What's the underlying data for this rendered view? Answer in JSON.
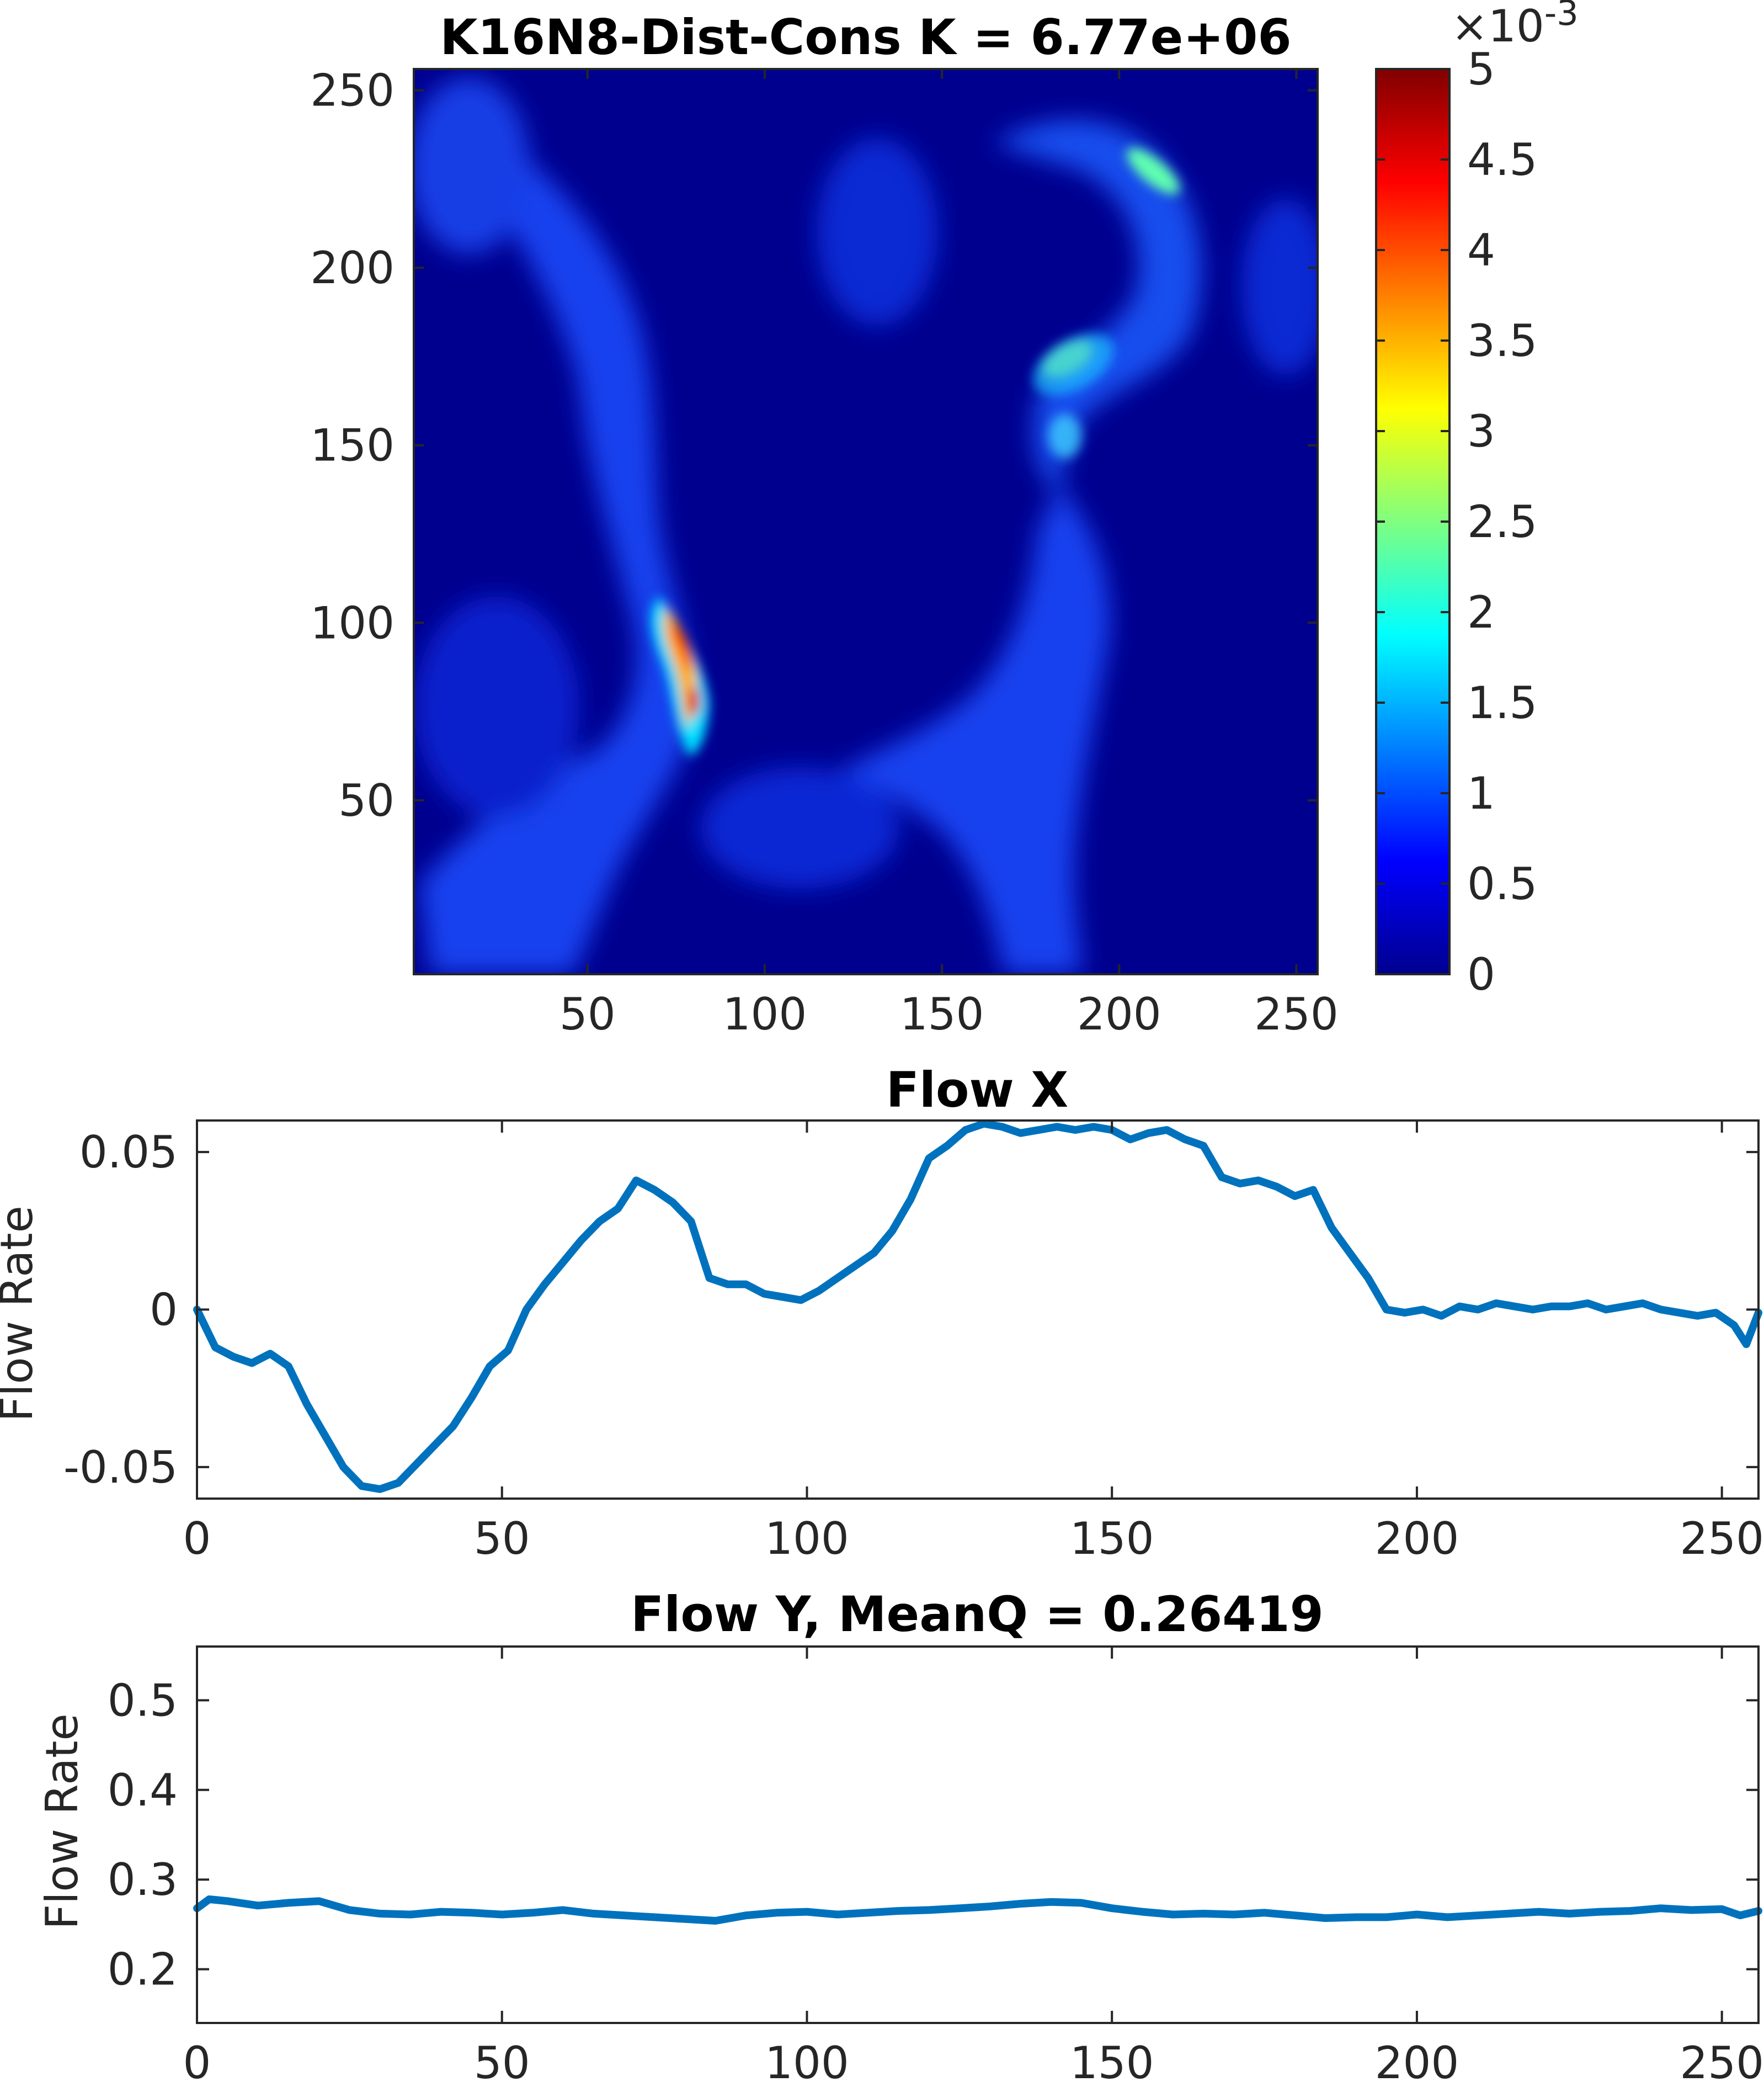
{
  "colors": {
    "series_line": "#0072bd",
    "axis": "#262626",
    "background": "#ffffff",
    "heatmap_background": "#00008f"
  },
  "chart_data": [
    {
      "type": "heatmap",
      "title": "K16N8-Dist-Cons K = 6.77e+06",
      "xlabel": "",
      "ylabel": "",
      "xlim": [
        1,
        256
      ],
      "ylim": [
        1,
        256
      ],
      "x_ticks": [
        50,
        100,
        150,
        200,
        250
      ],
      "y_ticks": [
        50,
        100,
        150,
        200,
        250
      ],
      "colormap": "jet",
      "colorbar": {
        "range": [
          0,
          5
        ],
        "ticks": [
          0,
          0.5,
          1,
          1.5,
          2,
          2.5,
          3,
          3.5,
          4,
          4.5,
          5
        ],
        "tick_labels": [
          "0",
          "0.5",
          "1",
          "1.5",
          "2",
          "2.5",
          "3",
          "3.5",
          "4",
          "4.5",
          "5"
        ],
        "multiplier_label": "×10",
        "multiplier_exponent": "-3"
      },
      "grid": false,
      "features": [
        {
          "x": 77,
          "y": 90,
          "peak": 4.6
        },
        {
          "x": 81,
          "y": 75,
          "peak": 4.2
        },
        {
          "x": 190,
          "y": 170,
          "peak": 2.6
        },
        {
          "x": 212,
          "y": 230,
          "peak": 2.2
        },
        {
          "x": 185,
          "y": 145,
          "peak": 1.4
        }
      ]
    },
    {
      "type": "line",
      "title": "Flow X",
      "xlabel": "",
      "ylabel": "Flow Rate",
      "xlim": [
        0,
        256
      ],
      "ylim": [
        -0.06,
        0.06
      ],
      "x_ticks": [
        0,
        50,
        100,
        150,
        200,
        250
      ],
      "y_ticks": [
        -0.05,
        0,
        0.05
      ],
      "y_tick_labels": [
        "-0.05",
        "0",
        "0.05"
      ],
      "grid": false,
      "series": [
        {
          "x": [
            0,
            3,
            6,
            9,
            12,
            15,
            18,
            21,
            24,
            27,
            30,
            33,
            36,
            39,
            42,
            45,
            48,
            51,
            54,
            57,
            60,
            63,
            66,
            69,
            72,
            75,
            78,
            81,
            84,
            87,
            90,
            93,
            96,
            99,
            102,
            105,
            108,
            111,
            114,
            117,
            120,
            123,
            126,
            129,
            132,
            135,
            138,
            141,
            144,
            147,
            150,
            153,
            156,
            159,
            162,
            165,
            168,
            171,
            174,
            177,
            180,
            183,
            186,
            189,
            192,
            195,
            198,
            201,
            204,
            207,
            210,
            213,
            216,
            219,
            222,
            225,
            228,
            231,
            234,
            237,
            240,
            243,
            246,
            249,
            252,
            254,
            256
          ],
          "values": [
            0.0,
            -0.012,
            -0.015,
            -0.017,
            -0.014,
            -0.018,
            -0.03,
            -0.04,
            -0.05,
            -0.056,
            -0.057,
            -0.055,
            -0.049,
            -0.043,
            -0.037,
            -0.028,
            -0.018,
            -0.013,
            0.0,
            0.008,
            0.015,
            0.022,
            0.028,
            0.032,
            0.041,
            0.038,
            0.034,
            0.028,
            0.01,
            0.008,
            0.008,
            0.005,
            0.004,
            0.003,
            0.006,
            0.01,
            0.014,
            0.018,
            0.025,
            0.035,
            0.048,
            0.052,
            0.057,
            0.059,
            0.058,
            0.056,
            0.057,
            0.058,
            0.057,
            0.058,
            0.057,
            0.054,
            0.056,
            0.057,
            0.054,
            0.052,
            0.042,
            0.04,
            0.041,
            0.039,
            0.036,
            0.038,
            0.026,
            0.018,
            0.01,
            0.0,
            -0.001,
            0.0,
            -0.002,
            0.001,
            0.0,
            0.002,
            0.001,
            0.0,
            0.001,
            0.001,
            0.002,
            0.0,
            0.001,
            0.002,
            0.0,
            -0.001,
            -0.002,
            -0.001,
            -0.005,
            -0.011,
            -0.001
          ]
        }
      ]
    },
    {
      "type": "line",
      "title": "Flow Y, MeanQ = 0.26419",
      "xlabel": "",
      "ylabel": "Flow Rate",
      "xlim": [
        0,
        256
      ],
      "ylim": [
        0.14,
        0.56
      ],
      "x_ticks": [
        0,
        50,
        100,
        150,
        200,
        250
      ],
      "y_ticks": [
        0.2,
        0.3,
        0.4,
        0.5
      ],
      "y_tick_labels": [
        "0.2",
        "0.3",
        "0.4",
        "0.5"
      ],
      "grid": false,
      "series": [
        {
          "x": [
            0,
            2,
            5,
            10,
            15,
            20,
            25,
            30,
            35,
            40,
            45,
            50,
            55,
            60,
            65,
            70,
            75,
            80,
            85,
            90,
            95,
            100,
            105,
            110,
            115,
            120,
            125,
            130,
            135,
            140,
            145,
            150,
            155,
            160,
            165,
            170,
            175,
            180,
            185,
            190,
            195,
            200,
            205,
            210,
            215,
            220,
            225,
            230,
            235,
            240,
            245,
            250,
            253,
            256
          ],
          "values": [
            0.268,
            0.278,
            0.276,
            0.271,
            0.274,
            0.276,
            0.266,
            0.262,
            0.261,
            0.264,
            0.263,
            0.261,
            0.263,
            0.266,
            0.262,
            0.26,
            0.258,
            0.256,
            0.254,
            0.26,
            0.263,
            0.264,
            0.261,
            0.263,
            0.265,
            0.266,
            0.268,
            0.27,
            0.273,
            0.275,
            0.274,
            0.268,
            0.264,
            0.261,
            0.262,
            0.261,
            0.263,
            0.26,
            0.257,
            0.258,
            0.258,
            0.261,
            0.258,
            0.26,
            0.262,
            0.264,
            0.262,
            0.264,
            0.265,
            0.268,
            0.266,
            0.267,
            0.26,
            0.265
          ]
        }
      ]
    }
  ]
}
